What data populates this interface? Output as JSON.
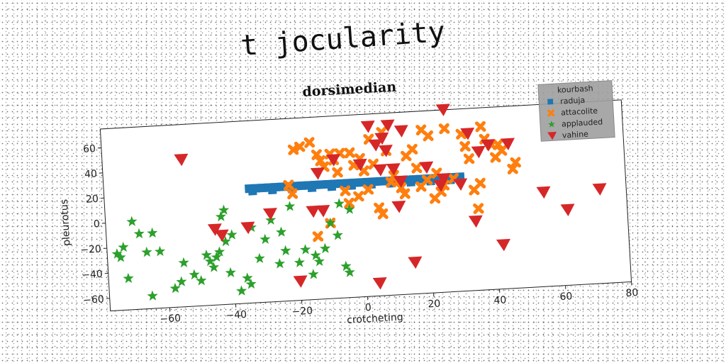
{
  "page": {
    "title": "t jocularity"
  },
  "chart_data": {
    "type": "scatter",
    "title": "dorsimedian",
    "xlabel": "crotcheting",
    "ylabel": "pleurotus",
    "xlim": [
      -78,
      80
    ],
    "ylim": [
      -70,
      75
    ],
    "xticks": [
      -60,
      -40,
      -20,
      0,
      20,
      40,
      60,
      80
    ],
    "yticks": [
      -60,
      -40,
      -20,
      0,
      20,
      40,
      60
    ],
    "grid": false,
    "legend": {
      "title": "kourbash",
      "placement": "top-right"
    },
    "series": [
      {
        "name": "raduja",
        "marker": "square",
        "color": "#1f77b4",
        "x": [
          -34,
          -32,
          -30,
          -28,
          -26,
          -24,
          -22,
          -20,
          -18,
          -16,
          -14,
          -12,
          -10,
          -8,
          -6,
          -4,
          -2,
          0,
          2,
          4,
          6,
          8,
          10,
          12,
          14,
          16,
          18,
          20,
          22,
          24,
          26,
          28,
          30,
          -33,
          -27,
          -21,
          -15,
          -9,
          -3,
          3,
          9,
          15,
          21,
          27
        ],
        "y": [
          21,
          21,
          21,
          21,
          21,
          21,
          21,
          21,
          21,
          21,
          21,
          21,
          21,
          21,
          21,
          21,
          21,
          21,
          21,
          21,
          21,
          21,
          21,
          21,
          21,
          21,
          21,
          21,
          21,
          21,
          21,
          21,
          21,
          19,
          19,
          19,
          19,
          19,
          19,
          19,
          19,
          19,
          19,
          19
        ]
      },
      {
        "name": "attacolite",
        "marker": "x",
        "color": "#ff7f0e",
        "x": [
          -22,
          -21,
          -20,
          -18,
          -15,
          -13,
          -12,
          -11,
          -9,
          -8,
          -7,
          -6,
          -5,
          -4,
          -3,
          -2,
          -1,
          0,
          1,
          2,
          4,
          5,
          6,
          7,
          8,
          9,
          10,
          11,
          12,
          13,
          14,
          16,
          17,
          18,
          19,
          20,
          21,
          22,
          23,
          24,
          25,
          26,
          31,
          32,
          33,
          34,
          35,
          36,
          37,
          38,
          40,
          41,
          42,
          43,
          46,
          47,
          -10,
          -14,
          3,
          28
        ],
        "y": [
          22,
          15,
          50,
          52,
          55,
          45,
          40,
          35,
          45,
          40,
          30,
          45,
          15,
          5,
          45,
          35,
          10,
          40,
          30,
          15,
          35,
          0,
          -5,
          60,
          45,
          20,
          25,
          20,
          15,
          10,
          40,
          45,
          30,
          15,
          60,
          20,
          55,
          5,
          25,
          10,
          15,
          60,
          55,
          45,
          35,
          10,
          -5,
          15,
          60,
          50,
          45,
          35,
          45,
          40,
          25,
          30,
          -10,
          -20,
          55,
          20
        ]
      },
      {
        "name": "applauded",
        "marker": "star",
        "color": "#2ca02c",
        "x": [
          -75,
          -74,
          -73,
          -72,
          -70,
          -68,
          -66,
          -65,
          -64,
          -62,
          -58,
          -56,
          -55,
          -52,
          -50,
          -48,
          -47,
          -46,
          -45,
          -44,
          -43,
          -42,
          -41,
          -40,
          -38,
          -36,
          -34,
          -32,
          -30,
          -28,
          -26,
          -24,
          -22,
          -20,
          -18,
          -16,
          -14,
          -12,
          -10,
          -8,
          -6,
          -5,
          -4,
          -42,
          -35,
          -25,
          -15,
          -7
        ],
        "y": [
          -25,
          -28,
          -20,
          -45,
          0,
          -10,
          -25,
          -60,
          -10,
          -25,
          -55,
          -50,
          -35,
          -45,
          -50,
          -30,
          -35,
          -40,
          -32,
          -28,
          0,
          -20,
          -45,
          -15,
          -60,
          -50,
          -10,
          -35,
          -20,
          -5,
          -40,
          -30,
          5,
          -40,
          -30,
          -50,
          -40,
          -30,
          -10,
          -20,
          -45,
          -50,
          0,
          5,
          -55,
          -15,
          -35,
          5
        ]
      },
      {
        "name": "vahine",
        "marker": "triangle-down",
        "color": "#d62728",
        "x": [
          -54,
          -45,
          -43,
          -35,
          -28,
          -20,
          -15,
          -13,
          -12,
          0,
          3,
          4,
          5,
          6,
          7,
          8,
          9,
          10,
          11,
          12,
          13,
          20,
          24,
          25,
          26,
          30,
          33,
          34,
          36,
          39,
          42,
          45,
          55,
          62,
          72,
          -8,
          15
        ],
        "y": [
          47,
          -10,
          -15,
          -10,
          0,
          -55,
          0,
          30,
          0,
          35,
          65,
          -60,
          50,
          30,
          55,
          45,
          65,
          30,
          0,
          20,
          60,
          30,
          15,
          20,
          75,
          15,
          55,
          -15,
          40,
          45,
          -35,
          45,
          5,
          -10,
          5,
          40,
          -45
        ]
      }
    ]
  }
}
